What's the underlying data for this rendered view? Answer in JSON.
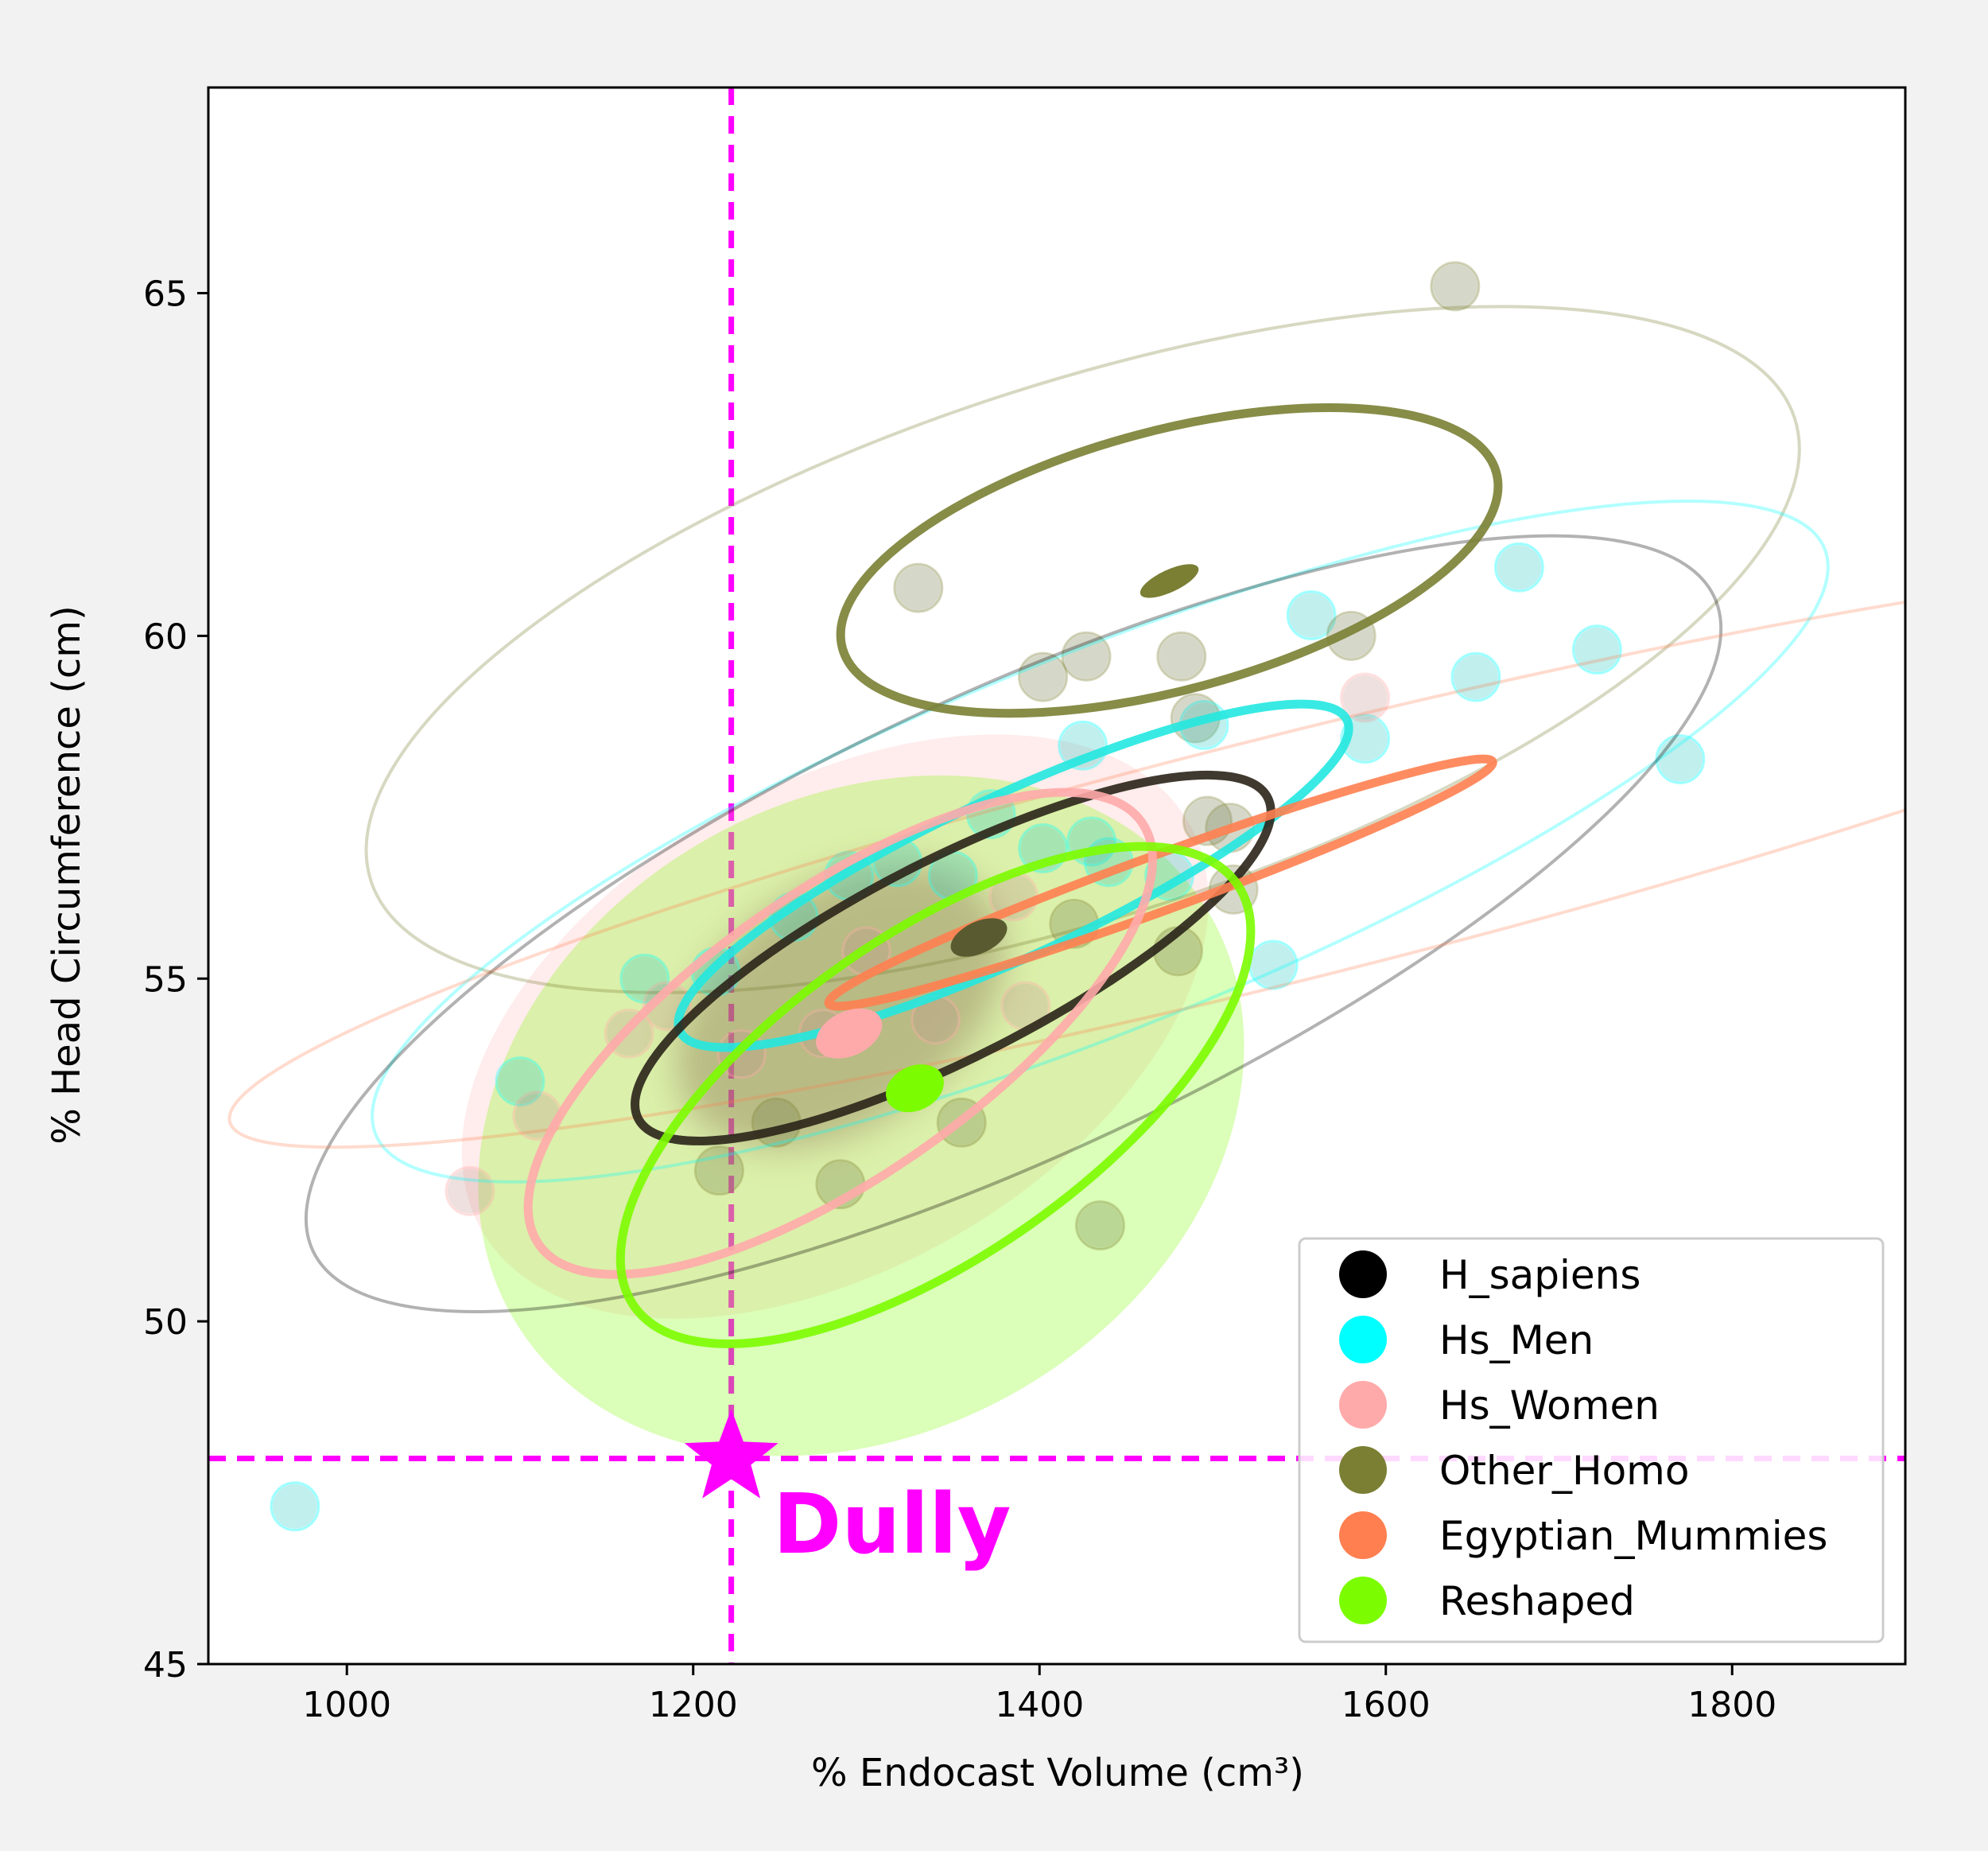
{
  "chart_data": {
    "type": "scatter",
    "xlabel": "% Endocast Volume (cm³)",
    "ylabel": "% Head Circumference (cm)",
    "xlim": [
      920,
      1900
    ],
    "ylim": [
      45,
      68
    ],
    "xticks": [
      1000,
      1200,
      1400,
      1600,
      1800
    ],
    "yticks": [
      45,
      50,
      55,
      60,
      65
    ],
    "grid": false,
    "legend_position": "lower-right",
    "legend": [
      {
        "name": "H_sapiens",
        "color": "#000000"
      },
      {
        "name": "Hs_Men",
        "color": "#00ffff"
      },
      {
        "name": "Hs_Women",
        "color": "#ffaaaa"
      },
      {
        "name": "Other_Homo",
        "color": "#7a7f33"
      },
      {
        "name": "Egyptian_Mummies",
        "color": "#ff7f50"
      },
      {
        "name": "Reshaped",
        "color": "#7cfc00"
      }
    ],
    "reference_lines": {
      "x": 1222,
      "y": 48
    },
    "annotation": {
      "label": "Dully",
      "x": 1222,
      "y": 48,
      "color": "#ff00ff"
    },
    "points": [
      {
        "group": "Hs_Men",
        "x": 970,
        "y": 47.3
      },
      {
        "group": "Hs_Women",
        "x": 1071,
        "y": 51.9
      },
      {
        "group": "Hs_Men",
        "x": 1100,
        "y": 53.5
      },
      {
        "group": "Hs_Women",
        "x": 1110,
        "y": 53.0
      },
      {
        "group": "Hs_Women",
        "x": 1163,
        "y": 54.2
      },
      {
        "group": "Hs_Men",
        "x": 1172,
        "y": 55.0
      },
      {
        "group": "Hs_Women",
        "x": 1185,
        "y": 54.6
      },
      {
        "group": "Hs_Men",
        "x": 1213,
        "y": 55.1
      },
      {
        "group": "Other_Homo",
        "x": 1215,
        "y": 52.2
      },
      {
        "group": "Hs_Women",
        "x": 1228,
        "y": 53.9
      },
      {
        "group": "Other_Homo",
        "x": 1248,
        "y": 52.9
      },
      {
        "group": "Hs_Men",
        "x": 1258,
        "y": 55.9
      },
      {
        "group": "Hs_Women",
        "x": 1275,
        "y": 54.2
      },
      {
        "group": "Other_Homo",
        "x": 1285,
        "y": 52.0
      },
      {
        "group": "Hs_Men",
        "x": 1290,
        "y": 56.5
      },
      {
        "group": "Hs_Women",
        "x": 1300,
        "y": 55.4
      },
      {
        "group": "Hs_Men",
        "x": 1318,
        "y": 56.7
      },
      {
        "group": "Other_Homo",
        "x": 1330,
        "y": 60.7
      },
      {
        "group": "Hs_Women",
        "x": 1340,
        "y": 54.4
      },
      {
        "group": "Hs_Men",
        "x": 1350,
        "y": 56.5
      },
      {
        "group": "Other_Homo",
        "x": 1355,
        "y": 52.9
      },
      {
        "group": "Hs_Men",
        "x": 1372,
        "y": 57.4
      },
      {
        "group": "Hs_Women",
        "x": 1385,
        "y": 56.2
      },
      {
        "group": "Hs_Women",
        "x": 1392,
        "y": 54.6
      },
      {
        "group": "Hs_Men",
        "x": 1402,
        "y": 56.9
      },
      {
        "group": "Other_Homo",
        "x": 1402,
        "y": 59.4
      },
      {
        "group": "Other_Homo",
        "x": 1420,
        "y": 55.8
      },
      {
        "group": "Hs_Men",
        "x": 1425,
        "y": 58.4
      },
      {
        "group": "Other_Homo",
        "x": 1427,
        "y": 59.7
      },
      {
        "group": "Hs_Men",
        "x": 1430,
        "y": 57.0
      },
      {
        "group": "Other_Homo",
        "x": 1435,
        "y": 51.4
      },
      {
        "group": "Hs_Men",
        "x": 1440,
        "y": 56.7
      },
      {
        "group": "Hs_Men",
        "x": 1475,
        "y": 56.5
      },
      {
        "group": "Other_Homo",
        "x": 1480,
        "y": 55.4
      },
      {
        "group": "Other_Homo",
        "x": 1482,
        "y": 59.7
      },
      {
        "group": "Other_Homo",
        "x": 1490,
        "y": 58.8
      },
      {
        "group": "Hs_Men",
        "x": 1495,
        "y": 58.7
      },
      {
        "group": "Other_Homo",
        "x": 1497,
        "y": 57.3
      },
      {
        "group": "Other_Homo",
        "x": 1510,
        "y": 57.2
      },
      {
        "group": "Other_Homo",
        "x": 1512,
        "y": 56.3
      },
      {
        "group": "Hs_Men",
        "x": 1535,
        "y": 55.2
      },
      {
        "group": "Hs_Men",
        "x": 1557,
        "y": 60.3
      },
      {
        "group": "Other_Homo",
        "x": 1580,
        "y": 60.0
      },
      {
        "group": "Hs_Men",
        "x": 1588,
        "y": 58.5
      },
      {
        "group": "Hs_Women",
        "x": 1588,
        "y": 59.1
      },
      {
        "group": "Other_Homo",
        "x": 1640,
        "y": 65.1
      },
      {
        "group": "Hs_Men",
        "x": 1652,
        "y": 59.4
      },
      {
        "group": "Hs_Men",
        "x": 1677,
        "y": 61.0
      },
      {
        "group": "Hs_Men",
        "x": 1722,
        "y": 59.8
      },
      {
        "group": "Hs_Men",
        "x": 1770,
        "y": 58.2
      }
    ],
    "ellipses": [
      {
        "group": "Other_Homo",
        "style": "outer",
        "cx": 1425,
        "cy": 59.8,
        "rx": 455,
        "ry": 3.7,
        "angle": 18
      },
      {
        "group": "Hs_Men",
        "style": "outer",
        "cx": 1435,
        "cy": 57.0,
        "rx": 475,
        "ry": 2.6,
        "angle": 22
      },
      {
        "group": "H_sapiens",
        "style": "outer",
        "cx": 1385,
        "cy": 55.8,
        "rx": 470,
        "ry": 3.2,
        "angle": 25
      },
      {
        "group": "Egyptian_Mummies",
        "style": "outer",
        "cx": 1550,
        "cy": 56.8,
        "rx": 670,
        "ry": 1.7,
        "angle": 14
      },
      {
        "group": "Hs_Women",
        "style": "filled",
        "cx": 1282,
        "cy": 54.3,
        "rx": 380,
        "ry": 3.2,
        "angle": 30
      },
      {
        "group": "Reshaped",
        "style": "filled",
        "cx": 1297,
        "cy": 53.0,
        "rx": 375,
        "ry": 4.2,
        "angle": 30
      },
      {
        "group": "Other_Homo",
        "style": "inner",
        "cx": 1475,
        "cy": 61.1,
        "rx": 230,
        "ry": 2.1,
        "angle": 15
      },
      {
        "group": "Hs_Men",
        "style": "inner",
        "cx": 1385,
        "cy": 56.5,
        "rx": 250,
        "ry": 1.3,
        "angle": 25
      },
      {
        "group": "H_sapiens",
        "style": "inner",
        "cx": 1350,
        "cy": 55.3,
        "rx": 240,
        "ry": 1.6,
        "angle": 27
      },
      {
        "group": "Egyptian_Mummies",
        "style": "inner",
        "cx": 1470,
        "cy": 56.4,
        "rx": 240,
        "ry": 0.45,
        "angle": 20
      },
      {
        "group": "Hs_Women",
        "style": "inner",
        "cx": 1285,
        "cy": 54.2,
        "rx": 250,
        "ry": 2.3,
        "angle": 35
      },
      {
        "group": "Reshaped",
        "style": "inner",
        "cx": 1340,
        "cy": 53.3,
        "rx": 250,
        "ry": 2.6,
        "angle": 35
      }
    ],
    "means": [
      {
        "group": "Other_Homo",
        "x": 1475,
        "y": 60.8
      },
      {
        "group": "H_sapiens",
        "x": 1365,
        "y": 55.6
      },
      {
        "group": "Hs_Women",
        "x": 1290,
        "y": 54.2
      },
      {
        "group": "Reshaped",
        "x": 1328,
        "y": 53.4
      }
    ]
  }
}
